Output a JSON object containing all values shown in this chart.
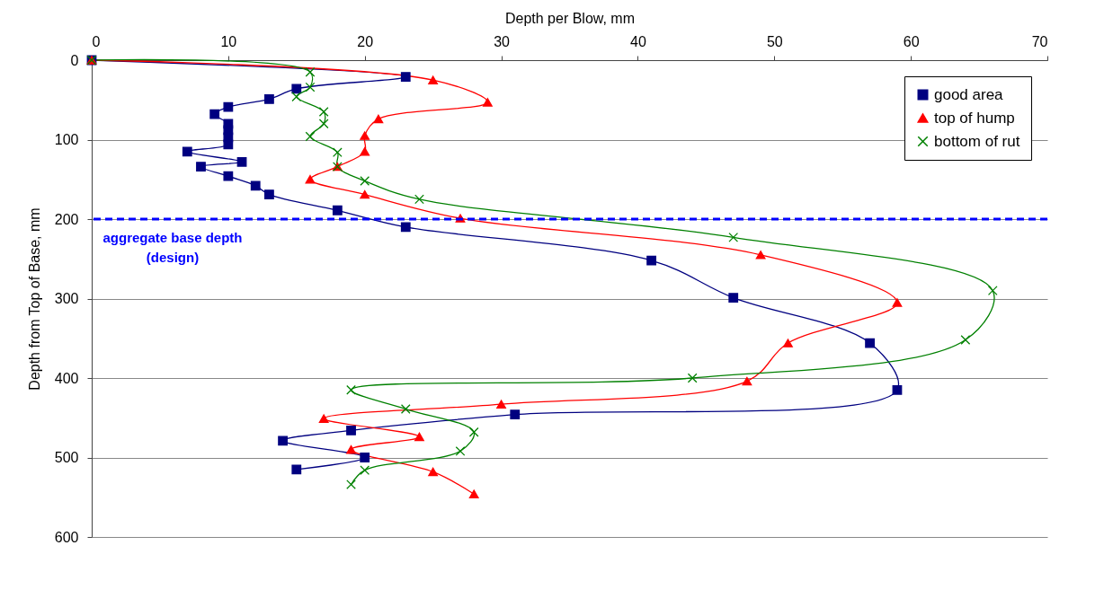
{
  "chart_data": {
    "type": "line",
    "xlabel": "Depth per Blow, mm",
    "ylabel": "Depth from Top of Base, mm",
    "xlim": [
      0,
      70
    ],
    "xticks": [
      0,
      10,
      20,
      30,
      40,
      50,
      60,
      70
    ],
    "ylim": [
      600,
      0
    ],
    "yticks": [
      0,
      100,
      200,
      300,
      400,
      500,
      600
    ],
    "grid": "y",
    "legend": "top right",
    "series": [
      {
        "name": "good area",
        "color": "#000080",
        "marker": "square",
        "x": [
          0,
          23,
          15,
          13,
          10,
          9,
          10,
          10,
          10,
          10,
          7,
          11,
          8,
          10,
          12,
          13,
          18,
          23,
          41,
          47,
          57,
          59,
          31,
          19,
          14,
          20,
          15
        ],
        "values": [
          0,
          21,
          36,
          49,
          59,
          68,
          80,
          88,
          97,
          106,
          115,
          128,
          134,
          146,
          158,
          169,
          189,
          210,
          252,
          299,
          356,
          415,
          446,
          466,
          479,
          500,
          515
        ]
      },
      {
        "name": "top of hump",
        "color": "#ff0000",
        "marker": "triangle",
        "x": [
          0,
          25,
          29,
          21,
          20,
          20,
          18,
          16,
          20,
          27,
          49,
          59,
          51,
          48,
          30,
          17,
          24,
          19,
          25,
          28
        ],
        "values": [
          0,
          25,
          53,
          74,
          95,
          115,
          134,
          150,
          169,
          199,
          245,
          305,
          356,
          404,
          433,
          451,
          474,
          490,
          518,
          546
        ]
      },
      {
        "name": "bottom of rut",
        "color": "#008000",
        "marker": "cross",
        "x": [
          0,
          16,
          16,
          15,
          17,
          17,
          16,
          18,
          18,
          20,
          24,
          47,
          66,
          64,
          44,
          19,
          23,
          28,
          27,
          20,
          19
        ],
        "values": [
          0,
          15,
          34,
          46,
          65,
          80,
          96,
          116,
          134,
          152,
          175,
          223,
          290,
          352,
          400,
          415,
          439,
          468,
          492,
          516,
          534
        ]
      }
    ],
    "ref_lines": [
      {
        "axis": "y",
        "value": 200,
        "label": "aggregate base depth\n(design)",
        "color": "#0000ff",
        "line_style": "dashed"
      }
    ]
  }
}
